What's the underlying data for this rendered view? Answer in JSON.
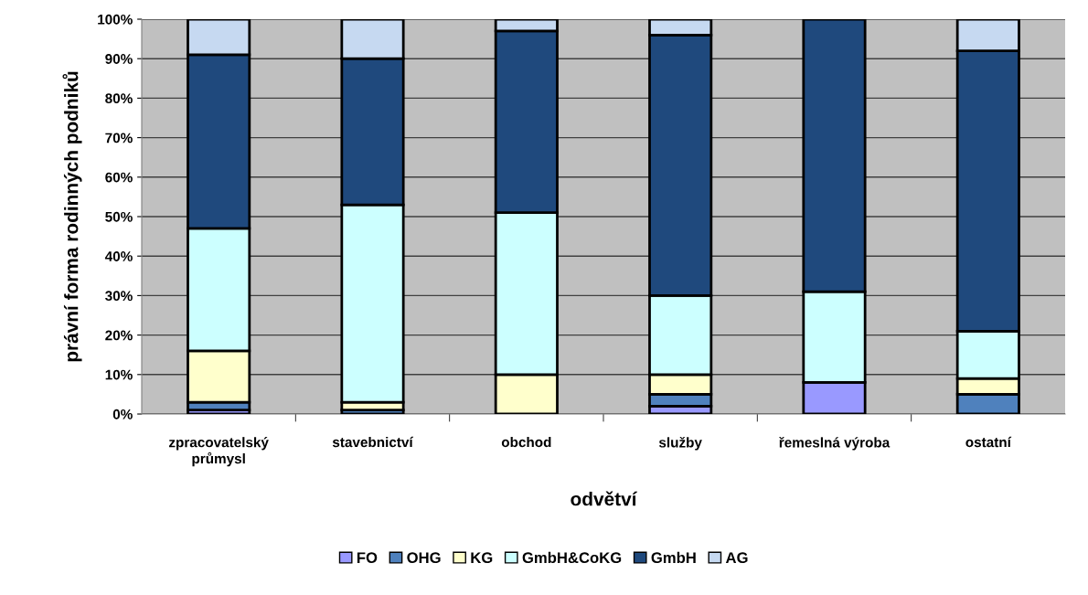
{
  "chart_data": {
    "type": "bar",
    "stacked": true,
    "xlabel": "odvětví",
    "ylabel": "právní forma rodinných podniků",
    "categories": [
      "zpracovatelský\nprůmysl",
      "stavebnictví",
      "obchod",
      "služby",
      "řemeslná výroba",
      "ostatní"
    ],
    "series": [
      {
        "name": "FO",
        "color": "#9999ff",
        "values": [
          1,
          0,
          0,
          2,
          8,
          0
        ]
      },
      {
        "name": "OHG",
        "color": "#4f81bd",
        "values": [
          2,
          1,
          0,
          3,
          0,
          5
        ]
      },
      {
        "name": "KG",
        "color": "#ffffcc",
        "values": [
          13,
          2,
          10,
          5,
          0,
          4
        ]
      },
      {
        "name": "GmbH&CoKG",
        "color": "#ccffff",
        "values": [
          31,
          50,
          41,
          20,
          23,
          12
        ]
      },
      {
        "name": "GmbH",
        "color": "#1f497d",
        "values": [
          44,
          37,
          46,
          66,
          69,
          71
        ]
      },
      {
        "name": "AG",
        "color": "#c6d9f1",
        "values": [
          9,
          10,
          3,
          4,
          0,
          8
        ]
      }
    ],
    "ylim": [
      0,
      100
    ],
    "yticks": [
      {
        "value": 0,
        "label": "0%"
      },
      {
        "value": 10,
        "label": "10%"
      },
      {
        "value": 20,
        "label": "20%"
      },
      {
        "value": 30,
        "label": "30%"
      },
      {
        "value": 40,
        "label": "40%"
      },
      {
        "value": 50,
        "label": "50%"
      },
      {
        "value": 60,
        "label": "60%"
      },
      {
        "value": 70,
        "label": "70%"
      },
      {
        "value": 80,
        "label": "80%"
      },
      {
        "value": 90,
        "label": "90%"
      },
      {
        "value": 100,
        "label": "100%"
      }
    ],
    "grid": "y",
    "legend": "bottom"
  }
}
